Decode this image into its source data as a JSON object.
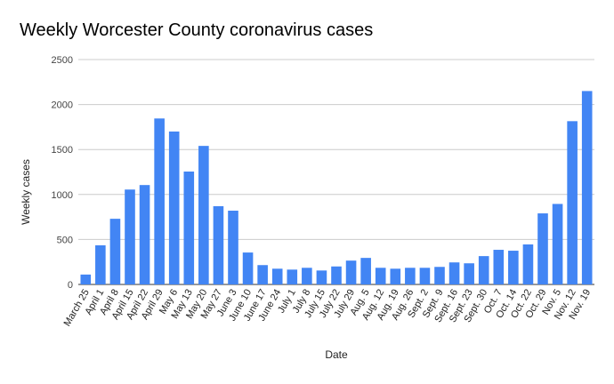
{
  "chart_data": {
    "type": "bar",
    "title": "Weekly Worcester County coronavirus cases",
    "xlabel": "Date",
    "ylabel": "Weekly cases",
    "ylim": [
      0,
      2500
    ],
    "yticks": [
      0,
      500,
      1000,
      1500,
      2000,
      2500
    ],
    "grid": true,
    "bar_color": "#4285f4",
    "categories": [
      "March 25",
      "April 1",
      "April 8",
      "April 15",
      "April 22",
      "April 29",
      "May 6",
      "May 13",
      "May 20",
      "May 27",
      "June 3",
      "June 10",
      "June 17",
      "June 24",
      "July 1",
      "July 8",
      "July 15",
      "July 22",
      "July 29",
      "Aug. 5",
      "Aug. 12",
      "Aug. 19",
      "Aug. 26",
      "Sept. 2",
      "Sept. 9",
      "Sept. 16",
      "Sept. 23",
      "Sept. 30",
      "Oct. 7",
      "Oct. 14",
      "Oct. 22",
      "Oct. 29",
      "Nov. 5",
      "Nov. 12",
      "Nov. 19"
    ],
    "values": [
      110,
      435,
      730,
      1055,
      1105,
      1845,
      1700,
      1255,
      1540,
      870,
      820,
      355,
      215,
      175,
      165,
      185,
      155,
      200,
      265,
      295,
      185,
      175,
      185,
      185,
      195,
      245,
      235,
      315,
      385,
      375,
      445,
      790,
      895,
      1815,
      2150
    ]
  }
}
